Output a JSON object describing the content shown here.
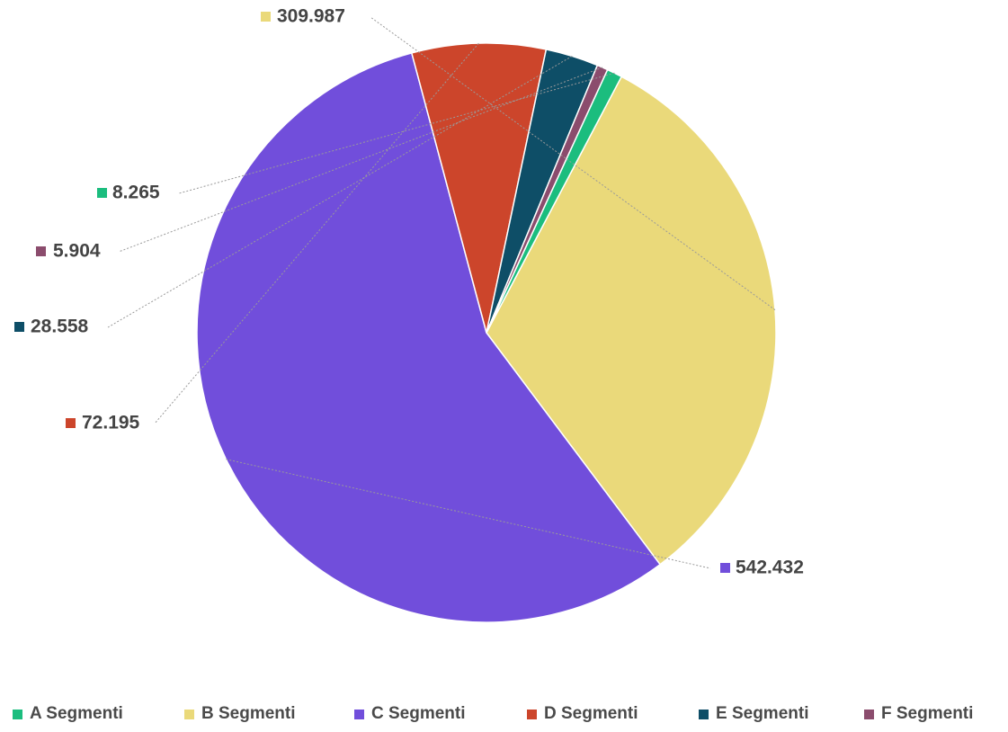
{
  "chart_data": {
    "type": "pie",
    "title": "",
    "legend_position": "bottom",
    "categories": [
      "A Segmenti",
      "B Segmenti",
      "C Segmenti",
      "D Segmenti",
      "E Segmenti",
      "F Segmenti"
    ],
    "values": [
      8265,
      309987,
      542432,
      72195,
      28558,
      5904
    ],
    "value_labels": [
      "8.265",
      "309.987",
      "542.432",
      "72.195",
      "28.558",
      "5.904"
    ],
    "colors": [
      "#1bbd7e",
      "#ead97a",
      "#714edb",
      "#cc452b",
      "#0e4e67",
      "#8b4c6d"
    ],
    "slice_order": [
      1,
      2,
      3,
      4,
      5,
      0
    ]
  }
}
